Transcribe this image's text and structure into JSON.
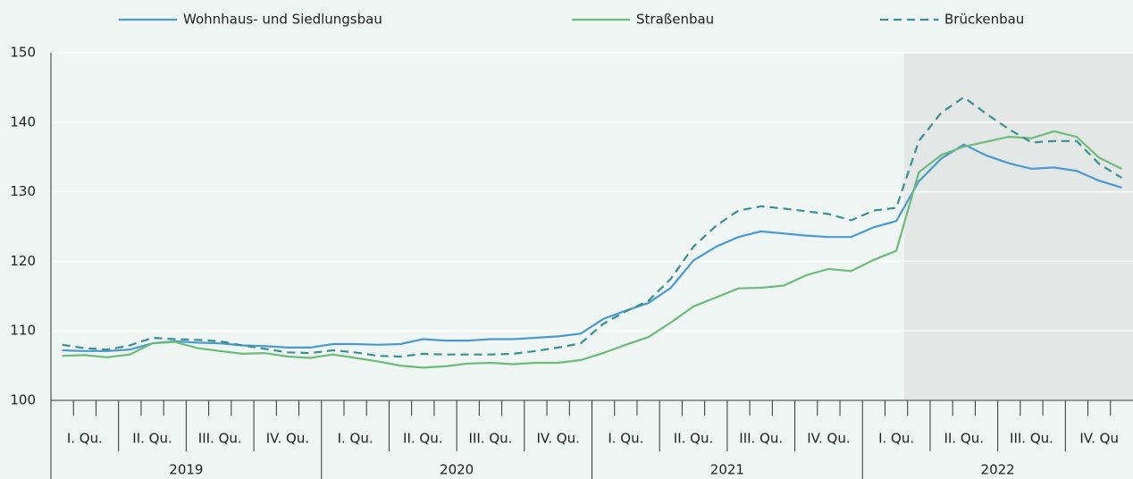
{
  "chart_data": {
    "type": "line",
    "quarters": [
      "I. Qu.",
      "II. Qu.",
      "III. Qu.",
      "IV. Qu.",
      "I. Qu.",
      "II. Qu.",
      "III. Qu.",
      "IV. Qu.",
      "I. Qu.",
      "II. Qu.",
      "III. Qu.",
      "IV. Qu.",
      "I. Qu.",
      "II. Qu.",
      "III. Qu.",
      "IV. Qu"
    ],
    "years": [
      "2019",
      "2020",
      "2021",
      "2022"
    ],
    "series": [
      {
        "name": "Wohnhaus- und Siedlungsbau",
        "color": "#4a9ad0",
        "dashed": false,
        "values": [
          107.2,
          107.1,
          107.1,
          107.3,
          108.2,
          108.5,
          108.3,
          108.2,
          107.9,
          107.8,
          107.6,
          107.6,
          108.1,
          108.1,
          108.0,
          108.1,
          108.8,
          108.6,
          108.6,
          108.8,
          108.8,
          109.0,
          109.2,
          109.6,
          111.7,
          112.9,
          114.0,
          116.2,
          120.1,
          122.1,
          123.5,
          124.3,
          124.0,
          123.7,
          123.5,
          123.5,
          124.9,
          125.8,
          131.5,
          134.8,
          136.8,
          135.2,
          134.1,
          133.3,
          133.5,
          133.0,
          131.6,
          130.6
        ]
      },
      {
        "name": "Straßenbau",
        "color": "#6dbb7a",
        "dashed": false,
        "values": [
          106.4,
          106.5,
          106.2,
          106.6,
          108.2,
          108.4,
          107.5,
          107.1,
          106.7,
          106.8,
          106.3,
          106.1,
          106.6,
          106.1,
          105.6,
          105.0,
          104.7,
          104.9,
          105.3,
          105.4,
          105.2,
          105.4,
          105.4,
          105.8,
          106.8,
          108.0,
          109.1,
          111.2,
          113.5,
          114.8,
          116.1,
          116.2,
          116.5,
          118.0,
          118.9,
          118.6,
          120.2,
          121.5,
          132.8,
          135.3,
          136.5,
          137.2,
          137.9,
          137.7,
          138.7,
          137.9,
          134.9,
          133.3
        ]
      },
      {
        "name": "Brückenbau",
        "color": "#3a8f8f",
        "dashed": true,
        "values": [
          108.0,
          107.5,
          107.3,
          107.9,
          109.0,
          108.8,
          108.7,
          108.5,
          107.9,
          107.4,
          106.9,
          106.8,
          107.2,
          106.9,
          106.4,
          106.3,
          106.7,
          106.6,
          106.6,
          106.6,
          106.7,
          107.1,
          107.6,
          108.2,
          111.0,
          112.8,
          114.3,
          117.5,
          122.1,
          125.1,
          127.3,
          127.9,
          127.6,
          127.2,
          126.8,
          125.9,
          127.3,
          127.7,
          137.3,
          141.4,
          143.6,
          141.2,
          139.0,
          137.1,
          137.3,
          137.3,
          134.0,
          132.0
        ]
      }
    ],
    "ylim": [
      100,
      150
    ],
    "yticks": [
      100,
      110,
      120,
      130,
      140,
      150
    ],
    "grid": true
  }
}
